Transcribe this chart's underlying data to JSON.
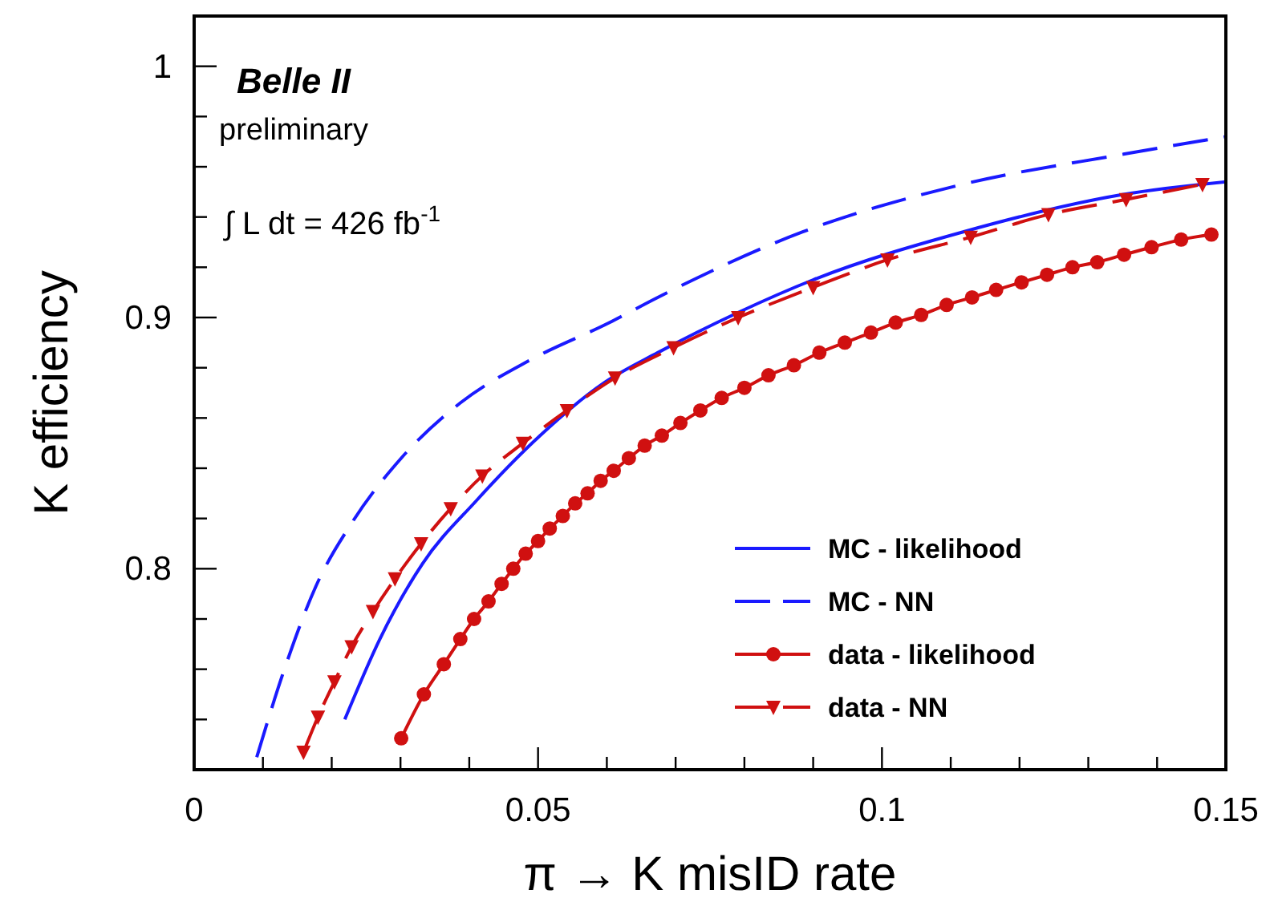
{
  "chart_data": {
    "type": "line",
    "xlabel": "π → K misID rate",
    "ylabel": "K efficiency",
    "annotations": [
      "Belle II",
      "preliminary",
      "∫ L dt = 426 fb$^{-1}$"
    ],
    "xlim": [
      0,
      0.15
    ],
    "ylim": [
      0.72,
      1.02
    ],
    "xticks": [
      0,
      {
        "value": 0.01,
        "label": null
      },
      {
        "value": 0.02,
        "label": null
      },
      {
        "value": 0.03,
        "label": null
      },
      {
        "value": 0.04,
        "label": null
      },
      0.05,
      {
        "value": 0.06,
        "label": null
      },
      {
        "value": 0.07,
        "label": null
      },
      {
        "value": 0.08,
        "label": null
      },
      {
        "value": 0.09,
        "label": null
      },
      0.1,
      {
        "value": 0.11,
        "label": null
      },
      {
        "value": 0.12,
        "label": null
      },
      {
        "value": 0.13,
        "label": null
      },
      {
        "value": 0.14,
        "label": null
      },
      0.15
    ],
    "yticks": [
      {
        "value": 0.74,
        "label": null
      },
      {
        "value": 0.76,
        "label": null
      },
      {
        "value": 0.78,
        "label": null
      },
      0.8,
      {
        "value": 0.82,
        "label": null
      },
      {
        "value": 0.84,
        "label": null
      },
      {
        "value": 0.86,
        "label": null
      },
      {
        "value": 0.88,
        "label": null
      },
      0.9,
      {
        "value": 0.92,
        "label": null
      },
      {
        "value": 0.94,
        "label": null
      },
      {
        "value": 0.96,
        "label": null
      },
      {
        "value": 0.98,
        "label": null
      },
      1
    ],
    "grid": false,
    "legend": "bottom right",
    "series": [
      {
        "name": "MC - likelihood",
        "color": "#1a1aff",
        "marker": "none",
        "line_style": "solid",
        "x": [
          0.0219,
          0.027,
          0.0332,
          0.041,
          0.0503,
          0.0596,
          0.0674,
          0.0791,
          0.09,
          0.1117,
          0.1351,
          0.15
        ],
        "values": [
          0.74,
          0.772,
          0.802,
          0.827,
          0.853,
          0.874,
          0.886,
          0.902,
          0.915,
          0.934,
          0.949,
          0.954
        ]
      },
      {
        "name": "MC - NN",
        "color": "#1a1aff",
        "marker": "none",
        "line_style": "dashed",
        "x": [
          0.0091,
          0.013,
          0.0177,
          0.0231,
          0.0301,
          0.0387,
          0.0488,
          0.0604,
          0.0674,
          0.0884,
          0.1117,
          0.1351,
          0.15
        ],
        "values": [
          0.725,
          0.759,
          0.793,
          0.819,
          0.844,
          0.866,
          0.883,
          0.898,
          0.908,
          0.934,
          0.953,
          0.965,
          0.972
        ]
      },
      {
        "name": "data - likelihood",
        "color": "#d01010",
        "marker": "circle",
        "line_style": "solid",
        "x": [
          0.0301,
          0.0334,
          0.0363,
          0.0387,
          0.0407,
          0.0428,
          0.0447,
          0.0464,
          0.0482,
          0.05,
          0.0517,
          0.0536,
          0.0554,
          0.0572,
          0.0591,
          0.061,
          0.0632,
          0.0655,
          0.068,
          0.0707,
          0.0736,
          0.0767,
          0.08,
          0.0835,
          0.0872,
          0.0909,
          0.0946,
          0.0984,
          0.102,
          0.1057,
          0.1094,
          0.1131,
          0.1166,
          0.1203,
          0.124,
          0.1277,
          0.1313,
          0.1352,
          0.1392,
          0.1435,
          0.1479
        ],
        "values": [
          0.7325,
          0.75,
          0.762,
          0.772,
          0.78,
          0.787,
          0.794,
          0.8,
          0.806,
          0.811,
          0.816,
          0.821,
          0.826,
          0.83,
          0.835,
          0.839,
          0.844,
          0.849,
          0.853,
          0.858,
          0.863,
          0.868,
          0.872,
          0.877,
          0.881,
          0.886,
          0.89,
          0.894,
          0.898,
          0.901,
          0.905,
          0.908,
          0.911,
          0.914,
          0.917,
          0.92,
          0.922,
          0.925,
          0.928,
          0.931,
          0.933
        ]
      },
      {
        "name": "data - NN",
        "color": "#d01010",
        "marker": "triangle",
        "line_style": "dashed",
        "x": [
          0.0159,
          0.018,
          0.0204,
          0.0229,
          0.026,
          0.0292,
          0.033,
          0.0373,
          0.0419,
          0.0478,
          0.0542,
          0.0612,
          0.0697,
          0.0791,
          0.09,
          0.1008,
          0.1129,
          0.1242,
          0.1355,
          0.1466
        ],
        "values": [
          0.727,
          0.741,
          0.755,
          0.769,
          0.783,
          0.796,
          0.81,
          0.824,
          0.837,
          0.85,
          0.863,
          0.876,
          0.888,
          0.9,
          0.912,
          0.923,
          0.932,
          0.941,
          0.947,
          0.953
        ]
      }
    ]
  }
}
